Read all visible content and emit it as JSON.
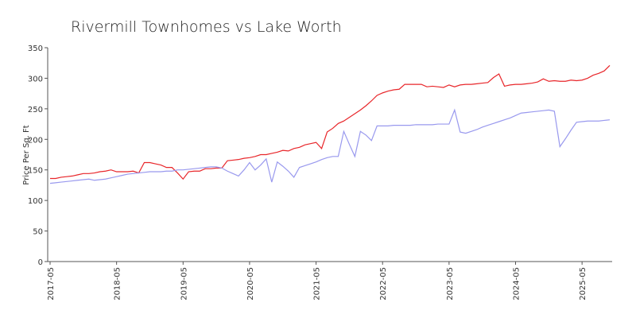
{
  "chart_data": {
    "type": "line",
    "title": "Rivermill Townhomes vs Lake Worth",
    "y_label": "Price Per Sq. Ft",
    "x": [
      "2017-05",
      "2017-06",
      "2017-07",
      "2017-08",
      "2017-09",
      "2017-10",
      "2017-11",
      "2017-12",
      "2018-01",
      "2018-02",
      "2018-03",
      "2018-04",
      "2018-05",
      "2018-06",
      "2018-07",
      "2018-08",
      "2018-09",
      "2018-10",
      "2018-11",
      "2018-12",
      "2019-01",
      "2019-02",
      "2019-03",
      "2019-04",
      "2019-05",
      "2019-06",
      "2019-07",
      "2019-08",
      "2019-09",
      "2019-10",
      "2019-11",
      "2019-12",
      "2020-01",
      "2020-02",
      "2020-03",
      "2020-04",
      "2020-05",
      "2020-06",
      "2020-07",
      "2020-08",
      "2020-09",
      "2020-10",
      "2020-11",
      "2020-12",
      "2021-01",
      "2021-02",
      "2021-03",
      "2021-04",
      "2021-05",
      "2021-06",
      "2021-07",
      "2021-08",
      "2021-09",
      "2021-10",
      "2021-11",
      "2021-12",
      "2022-01",
      "2022-02",
      "2022-03",
      "2022-04",
      "2022-05",
      "2022-06",
      "2022-07",
      "2022-08",
      "2022-09",
      "2022-10",
      "2022-11",
      "2022-12",
      "2023-01",
      "2023-02",
      "2023-03",
      "2023-04",
      "2023-05",
      "2023-06",
      "2023-07",
      "2023-08",
      "2023-09",
      "2023-10",
      "2023-11",
      "2023-12",
      "2024-01",
      "2024-02",
      "2024-03",
      "2024-04",
      "2024-05",
      "2024-06",
      "2024-07",
      "2024-08",
      "2024-09",
      "2024-10",
      "2024-11",
      "2024-12",
      "2025-01",
      "2025-02",
      "2025-03",
      "2025-04",
      "2025-05",
      "2025-06",
      "2025-07",
      "2025-08",
      "2025-09",
      "2025-10"
    ],
    "series": [
      {
        "color": "#e8262a",
        "values": [
          136,
          136,
          138,
          139,
          140,
          142,
          144,
          144,
          145,
          147,
          148,
          150,
          147,
          147,
          147,
          148,
          145,
          162,
          162,
          160,
          158,
          154,
          154,
          145,
          135,
          147,
          148,
          148,
          152,
          152,
          153,
          153,
          165,
          166,
          167,
          169,
          170,
          172,
          175,
          175,
          177,
          179,
          182,
          181,
          185,
          187,
          191,
          193,
          195,
          185,
          212,
          218,
          226,
          230,
          236,
          242,
          248,
          255,
          263,
          272,
          276,
          279,
          281,
          282,
          290,
          290,
          290,
          290,
          286,
          287,
          286,
          285,
          289,
          286,
          289,
          290,
          290,
          291,
          292,
          293,
          301,
          307,
          287,
          289,
          290,
          290,
          291,
          292,
          294,
          299,
          295,
          296,
          295,
          295,
          297,
          296,
          297,
          300,
          305,
          308,
          312,
          321
        ]
      },
      {
        "color": "#9999ee",
        "values": [
          128,
          129,
          130,
          131,
          132,
          133,
          134,
          135,
          133,
          134,
          135,
          137,
          139,
          141,
          143,
          144,
          145,
          146,
          147,
          147,
          147,
          148,
          148,
          150,
          150,
          151,
          152,
          153,
          154,
          155,
          155,
          153,
          148,
          144,
          140,
          150,
          162,
          150,
          158,
          168,
          130,
          163,
          156,
          148,
          138,
          154,
          157,
          160,
          163,
          167,
          170,
          172,
          172,
          213,
          192,
          172,
          213,
          207,
          198,
          222,
          222,
          222,
          223,
          223,
          223,
          223,
          224,
          224,
          224,
          224,
          225,
          225,
          225,
          248,
          212,
          210,
          213,
          216,
          220,
          223,
          226,
          229,
          232,
          235,
          239,
          243,
          244,
          245,
          246,
          247,
          248,
          246,
          188,
          201,
          215,
          228,
          229,
          230,
          230,
          230,
          231,
          232
        ]
      }
    ],
    "xticks": [
      "2017-05",
      "2018-05",
      "2019-05",
      "2020-05",
      "2021-05",
      "2022-05",
      "2023-05",
      "2024-05",
      "2025-05"
    ],
    "ylim": [
      0,
      350
    ],
    "yticks": [
      0,
      50,
      100,
      150,
      200,
      250,
      300,
      350
    ]
  }
}
